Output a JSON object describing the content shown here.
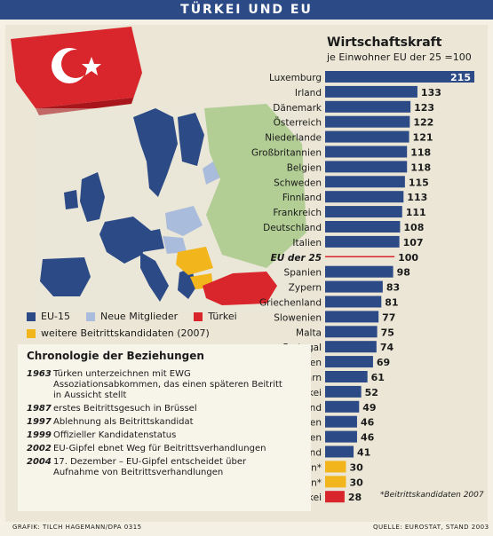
{
  "header": {
    "title": "TÜRKEI UND EU"
  },
  "chart_data": {
    "type": "bar",
    "orientation": "horizontal",
    "title": "Wirtschaftskraft",
    "subtitle": "je Einwohner EU der 25 =100",
    "categories": [
      "Luxemburg",
      "Irland",
      "Dänemark",
      "Österreich",
      "Niederlande",
      "Großbritannien",
      "Belgien",
      "Schweden",
      "Finnland",
      "Frankreich",
      "Deutschland",
      "Italien",
      "EU der 25",
      "Spanien",
      "Zypern",
      "Griechenland",
      "Slowenien",
      "Malta",
      "Portugal",
      "Tschechien",
      "Ungarn",
      "Slowakei",
      "Estland",
      "Litauen",
      "Polen",
      "Lettland",
      "Rumänien*",
      "Bulgarien*",
      "Türkei"
    ],
    "values": [
      215,
      133,
      123,
      122,
      121,
      118,
      118,
      115,
      113,
      111,
      108,
      107,
      100,
      98,
      83,
      81,
      77,
      75,
      74,
      69,
      61,
      52,
      49,
      46,
      46,
      41,
      30,
      30,
      28
    ],
    "groups": [
      "EU-15",
      "EU-15",
      "EU-15",
      "EU-15",
      "EU-15",
      "EU-15",
      "EU-15",
      "EU-15",
      "EU-15",
      "EU-15",
      "EU-15",
      "EU-15",
      "EU der 25",
      "EU-15",
      "Neue Mitglieder",
      "EU-15",
      "Neue Mitglieder",
      "Neue Mitglieder",
      "EU-15",
      "Neue Mitglieder",
      "Neue Mitglieder",
      "Neue Mitglieder",
      "Neue Mitglieder",
      "Neue Mitglieder",
      "Neue Mitglieder",
      "Neue Mitglieder",
      "weitere Beitrittskandidaten",
      "weitere Beitrittskandidaten",
      "Türkei"
    ],
    "colors": {
      "bar": "#2b4a86",
      "candidate": "#f2b51b",
      "turkey": "#d9262c",
      "reference": "#d9262c"
    },
    "note": "*Beitrittskandidaten 2007"
  },
  "legend": {
    "items": [
      {
        "label": "EU-15",
        "color": "#2b4a86"
      },
      {
        "label": "Neue Mitglieder",
        "color": "#a9bcdc"
      },
      {
        "label": "Türkei",
        "color": "#d9262c"
      }
    ],
    "candidates": {
      "label": "weitere Beitrittskandidaten (2007)",
      "color": "#f2b51b"
    }
  },
  "chronology": {
    "title": "Chronologie der Beziehungen",
    "events": [
      {
        "year": "1963",
        "text": "Türken unterzeichnen mit EWG Assoziationsabkommen, das einen späteren Beitritt in Aussicht stellt"
      },
      {
        "year": "1987",
        "text": "erstes Beitrittsgesuch in Brüssel"
      },
      {
        "year": "1997",
        "text": "Ablehnung als Beitrittskandidat"
      },
      {
        "year": "1999",
        "text": "Offizieller Kandidatenstatus"
      },
      {
        "year": "2002",
        "text": "EU-Gipfel ebnet Weg für Beitrittsverhandlungen"
      },
      {
        "year": "2004",
        "text": "17. Dezember – EU-Gipfel entscheidet über Aufnahme von Beitrittsverhandlungen"
      }
    ]
  },
  "footer": {
    "credit": "GRAFIK: TILCH HAGEMANN/DPA 0315",
    "source": "QUELLE: EUROSTAT, STAND 2003"
  }
}
